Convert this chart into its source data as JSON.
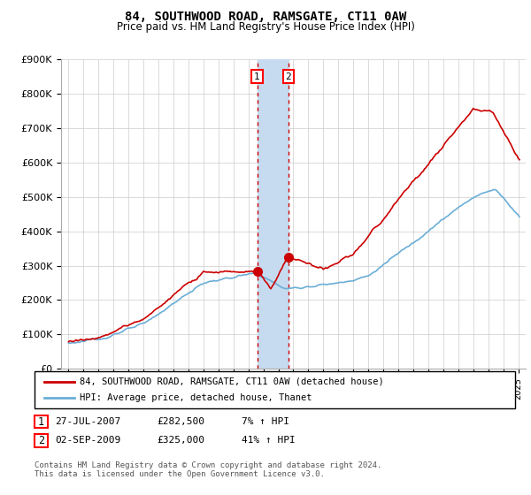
{
  "title": "84, SOUTHWOOD ROAD, RAMSGATE, CT11 0AW",
  "subtitle": "Price paid vs. HM Land Registry's House Price Index (HPI)",
  "ylim": [
    0,
    900000
  ],
  "yticks": [
    0,
    100000,
    200000,
    300000,
    400000,
    500000,
    600000,
    700000,
    800000,
    900000
  ],
  "ytick_labels": [
    "£0",
    "£100K",
    "£200K",
    "£300K",
    "£400K",
    "£500K",
    "£600K",
    "£700K",
    "£800K",
    "£900K"
  ],
  "hpi_color": "#6baed6",
  "price_color": "#cc0000",
  "transaction1_date": 2007.58,
  "transaction1_price": 282500,
  "transaction2_date": 2009.67,
  "transaction2_price": 325000,
  "shaded_color": "#c6dbef",
  "legend_line1": "84, SOUTHWOOD ROAD, RAMSGATE, CT11 0AW (detached house)",
  "legend_line2": "HPI: Average price, detached house, Thanet",
  "background_color": "#ffffff",
  "grid_color": "#cccccc",
  "footnote": "Contains HM Land Registry data © Crown copyright and database right 2024.\nThis data is licensed under the Open Government Licence v3.0."
}
